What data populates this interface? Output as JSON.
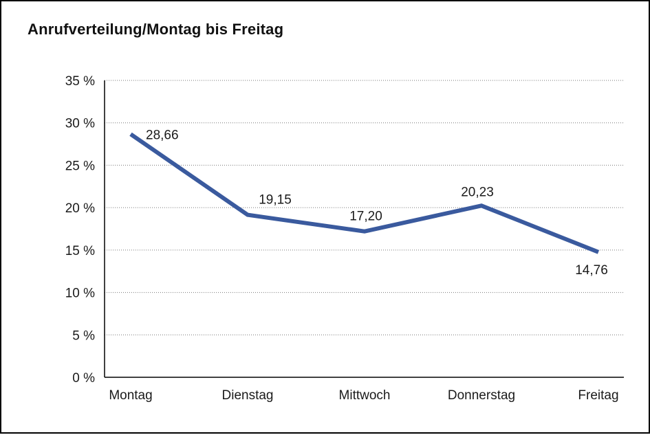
{
  "title": "Anrufverteilung/Montag bis Freitag",
  "chart_data": {
    "type": "line",
    "title": "Anrufverteilung/Montag bis Freitag",
    "categories": [
      "Montag",
      "Dienstag",
      "Mittwoch",
      "Donnerstag",
      "Freitag"
    ],
    "values": [
      28.66,
      19.15,
      17.2,
      20.23,
      14.76
    ],
    "value_labels": [
      "28,66",
      "19,15",
      "17,20",
      "20,23",
      "14,76"
    ],
    "label_positions": [
      "right",
      "above",
      "above",
      "above",
      "below"
    ],
    "xlabel": "",
    "ylabel": "",
    "ylim": [
      0,
      35
    ],
    "y_ticks": [
      0,
      5,
      10,
      15,
      20,
      25,
      30,
      35
    ],
    "y_tick_labels": [
      "0 %",
      "5 %",
      "10 %",
      "15 %",
      "20 %",
      "25 %",
      "30 %",
      "35 %"
    ],
    "grid": "dotted-horizontal",
    "legend": "none",
    "line_color": "#3A5A9E",
    "axis_color": "#000000",
    "grid_color": "#777777"
  }
}
